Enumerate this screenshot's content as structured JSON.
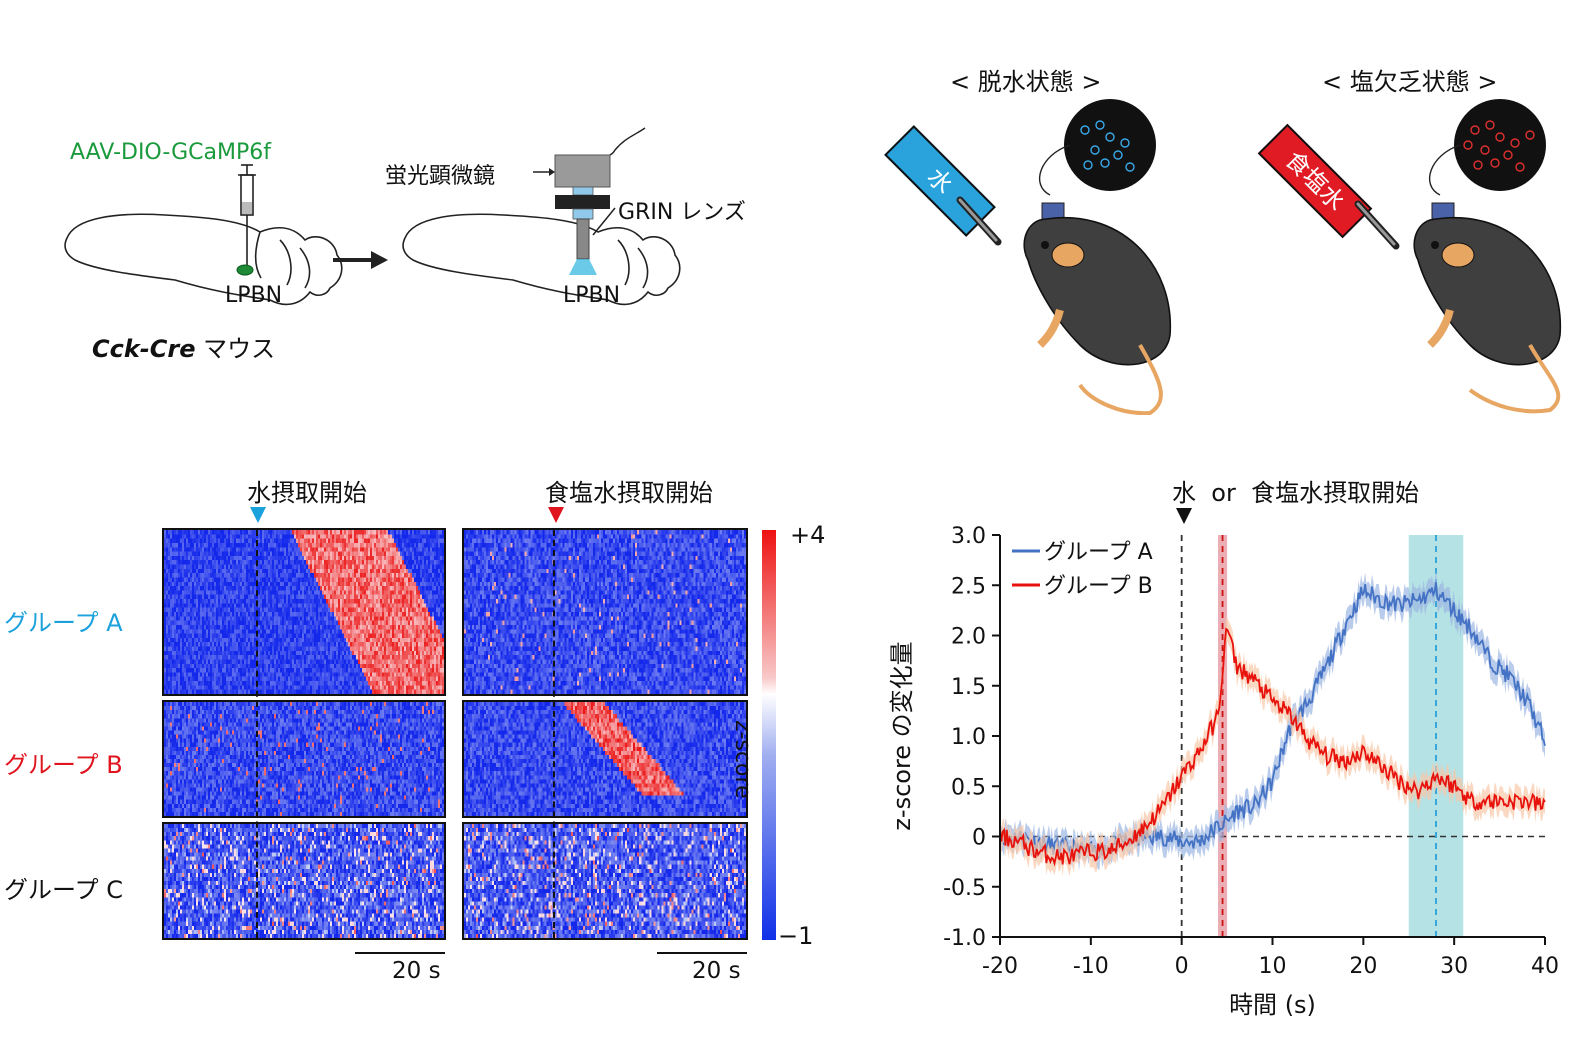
{
  "schematic": {
    "virus_label": "AAV-DIO-GCaMP6f",
    "brain_region_left": "LPBN",
    "brain_region_right": "LPBN",
    "mouse_line_italic": "Cck-Cre",
    "mouse_line_suffix": " マウス",
    "microscope_label": "蛍光顕微鏡",
    "lens_label": "GRIN レンズ"
  },
  "conditions": {
    "dehydration_title": "< 脱水状態 >",
    "salt_depletion_title": "< 塩欠乏状態 >",
    "water_bottle_label": "水",
    "saline_bottle_label": "食塩水",
    "colors": {
      "water": "#2aa3dc",
      "saline": "#e01b24"
    }
  },
  "heatmaps": {
    "left_title": "水摂取開始",
    "right_title": "食塩水摂取開始",
    "group_labels": [
      "グループ A",
      "グループ B",
      "グループ C"
    ],
    "group_label_colors": [
      "#1ba1dc",
      "#e0141e",
      "#111111"
    ],
    "colorbar_max_label": "+4",
    "colorbar_min_label": "−1",
    "colorbar_title": "z-score",
    "scalebar_left": "20 s",
    "scalebar_right": "20 s"
  },
  "linechart": {
    "event_label": "水  or  食塩水摂取開始",
    "xlabel": "時間  (s)",
    "ylabel": "z-score の変化量",
    "legend": [
      "グループ A",
      "グループ B"
    ]
  },
  "chart_data": {
    "type": "line",
    "xlim": [
      -20,
      40
    ],
    "ylim": [
      -1.0,
      3.0
    ],
    "xticks": [
      "-20",
      "-10",
      "0",
      "10",
      "20",
      "30",
      "40"
    ],
    "yticks": [
      "-1.0",
      "-0.5",
      "0",
      "0.5",
      "1.0",
      "1.5",
      "2.0",
      "2.5",
      "3.0"
    ],
    "x": [
      -20,
      -18,
      -16,
      -14,
      -12,
      -10,
      -8,
      -6,
      -4,
      -2,
      0,
      2,
      4,
      5,
      6,
      8,
      10,
      12,
      14,
      16,
      18,
      20,
      22,
      24,
      26,
      28,
      30,
      32,
      34,
      36,
      38,
      40
    ],
    "series": [
      {
        "name": "グループ A",
        "color": "#4472c4",
        "band_color": "#9db7e3",
        "values": [
          0.0,
          0.0,
          -0.05,
          -0.1,
          -0.12,
          -0.15,
          -0.1,
          -0.05,
          0.0,
          0.0,
          -0.05,
          -0.05,
          0.1,
          0.15,
          0.25,
          0.3,
          0.55,
          1.1,
          1.35,
          1.7,
          2.1,
          2.45,
          2.35,
          2.3,
          2.35,
          2.45,
          2.25,
          2.05,
          1.75,
          1.6,
          1.35,
          0.95
        ]
      },
      {
        "name": "グループ B",
        "color": "#e8120c",
        "band_color": "#f8c8a8",
        "values": [
          0.0,
          -0.05,
          -0.15,
          -0.2,
          -0.2,
          -0.15,
          -0.15,
          -0.05,
          0.1,
          0.3,
          0.6,
          0.85,
          1.2,
          2.1,
          1.7,
          1.55,
          1.35,
          1.2,
          0.95,
          0.8,
          0.75,
          0.85,
          0.7,
          0.55,
          0.45,
          0.6,
          0.5,
          0.35,
          0.35,
          0.35,
          0.35,
          0.3
        ]
      }
    ],
    "shaded_regions": [
      {
        "x0": 4.0,
        "x1": 5.0,
        "color": "#e8a0a8"
      },
      {
        "x0": 25.0,
        "x1": 31.0,
        "color": "#a8dde0"
      }
    ],
    "vlines": [
      {
        "x": 0,
        "color": "#333333"
      },
      {
        "x": 4.5,
        "color": "#cc1111"
      },
      {
        "x": 28,
        "color": "#2a9fd6"
      }
    ],
    "hline_y": 0,
    "legend_position": "top-left"
  }
}
